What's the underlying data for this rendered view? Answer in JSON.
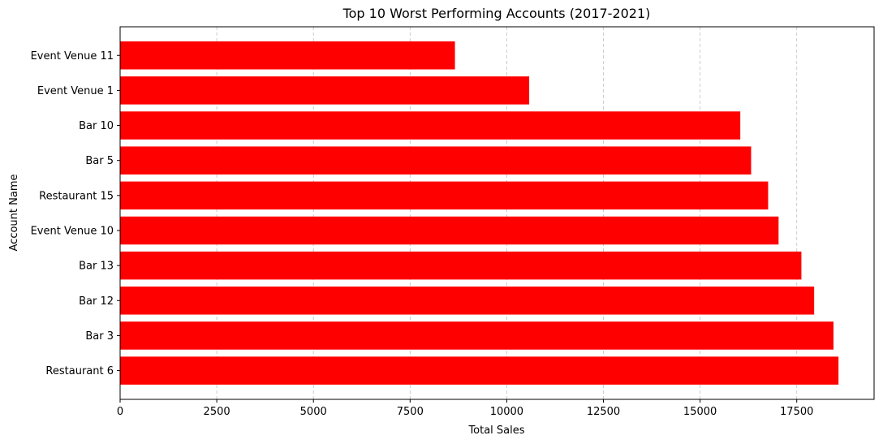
{
  "chart_data": {
    "type": "bar",
    "orientation": "horizontal",
    "title": "Top 10 Worst Performing Accounts (2017-2021)",
    "xlabel": "Total Sales",
    "ylabel": "Account Name",
    "categories": [
      "Restaurant 6",
      "Bar 3",
      "Bar 12",
      "Bar 13",
      "Event Venue 10",
      "Restaurant 15",
      "Bar 5",
      "Bar 10",
      "Event Venue 1",
      "Event Venue 11"
    ],
    "values": [
      18580,
      18450,
      17950,
      17620,
      17030,
      16760,
      16320,
      16040,
      10580,
      8660
    ],
    "xlim": [
      0,
      19500
    ],
    "xticks": [
      0,
      2500,
      5000,
      7500,
      10000,
      12500,
      15000,
      17500
    ],
    "xtick_labels": [
      "0",
      "2500",
      "5000",
      "7500",
      "10000",
      "12500",
      "15000",
      "17500"
    ],
    "bar_color": "#ff0000",
    "grid": "x-dashed"
  }
}
